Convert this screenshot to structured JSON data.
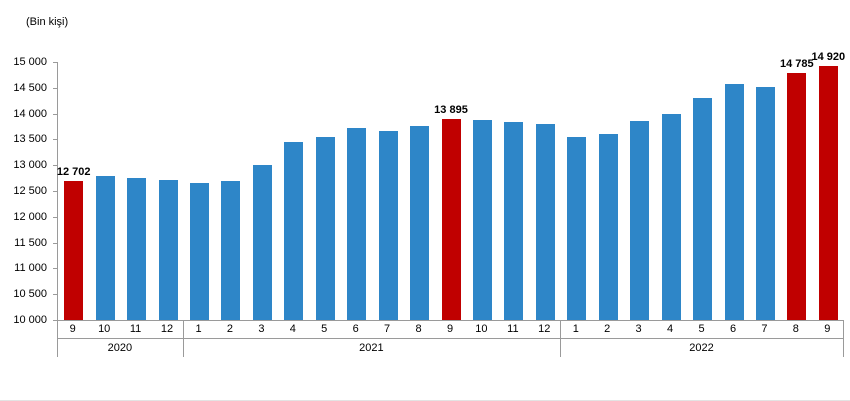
{
  "chart_data": {
    "type": "bar",
    "title": "",
    "unit_label": "(Bin kişi)",
    "xlabel": "",
    "ylabel": "Bin kişi",
    "ylim": [
      10000,
      15000
    ],
    "ytick_step": 500,
    "yticks": [
      "15 000",
      "14 500",
      "14 000",
      "13 500",
      "13 000",
      "12 500",
      "12 000",
      "11 500",
      "11 000",
      "10 500",
      "10 000"
    ],
    "grid": false,
    "legend": "none",
    "colors": {
      "bar": "#2e86c8",
      "highlight": "#c00000"
    },
    "points": [
      {
        "year": "2020",
        "month": "9",
        "value": 12702,
        "highlight": true,
        "label": "12 702"
      },
      {
        "year": "2020",
        "month": "10",
        "value": 12800,
        "highlight": false
      },
      {
        "year": "2020",
        "month": "11",
        "value": 12760,
        "highlight": false
      },
      {
        "year": "2020",
        "month": "12",
        "value": 12710,
        "highlight": false
      },
      {
        "year": "2021",
        "month": "1",
        "value": 12650,
        "highlight": false
      },
      {
        "year": "2021",
        "month": "2",
        "value": 12690,
        "highlight": false
      },
      {
        "year": "2021",
        "month": "3",
        "value": 13000,
        "highlight": false
      },
      {
        "year": "2021",
        "month": "4",
        "value": 13450,
        "highlight": false
      },
      {
        "year": "2021",
        "month": "5",
        "value": 13540,
        "highlight": false
      },
      {
        "year": "2021",
        "month": "6",
        "value": 13720,
        "highlight": false
      },
      {
        "year": "2021",
        "month": "7",
        "value": 13660,
        "highlight": false
      },
      {
        "year": "2021",
        "month": "8",
        "value": 13760,
        "highlight": false
      },
      {
        "year": "2021",
        "month": "9",
        "value": 13895,
        "highlight": true,
        "label": "13 895"
      },
      {
        "year": "2021",
        "month": "10",
        "value": 13870,
        "highlight": false
      },
      {
        "year": "2021",
        "month": "11",
        "value": 13845,
        "highlight": false
      },
      {
        "year": "2021",
        "month": "12",
        "value": 13790,
        "highlight": false
      },
      {
        "year": "2022",
        "month": "1",
        "value": 13550,
        "highlight": false
      },
      {
        "year": "2022",
        "month": "2",
        "value": 13615,
        "highlight": false
      },
      {
        "year": "2022",
        "month": "3",
        "value": 13860,
        "highlight": false
      },
      {
        "year": "2022",
        "month": "4",
        "value": 13990,
        "highlight": false
      },
      {
        "year": "2022",
        "month": "5",
        "value": 14300,
        "highlight": false
      },
      {
        "year": "2022",
        "month": "6",
        "value": 14580,
        "highlight": false
      },
      {
        "year": "2022",
        "month": "7",
        "value": 14510,
        "highlight": false
      },
      {
        "year": "2022",
        "month": "8",
        "value": 14785,
        "highlight": true,
        "label": "14 785"
      },
      {
        "year": "2022",
        "month": "9",
        "value": 14920,
        "highlight": true,
        "label": "14 920"
      }
    ]
  }
}
